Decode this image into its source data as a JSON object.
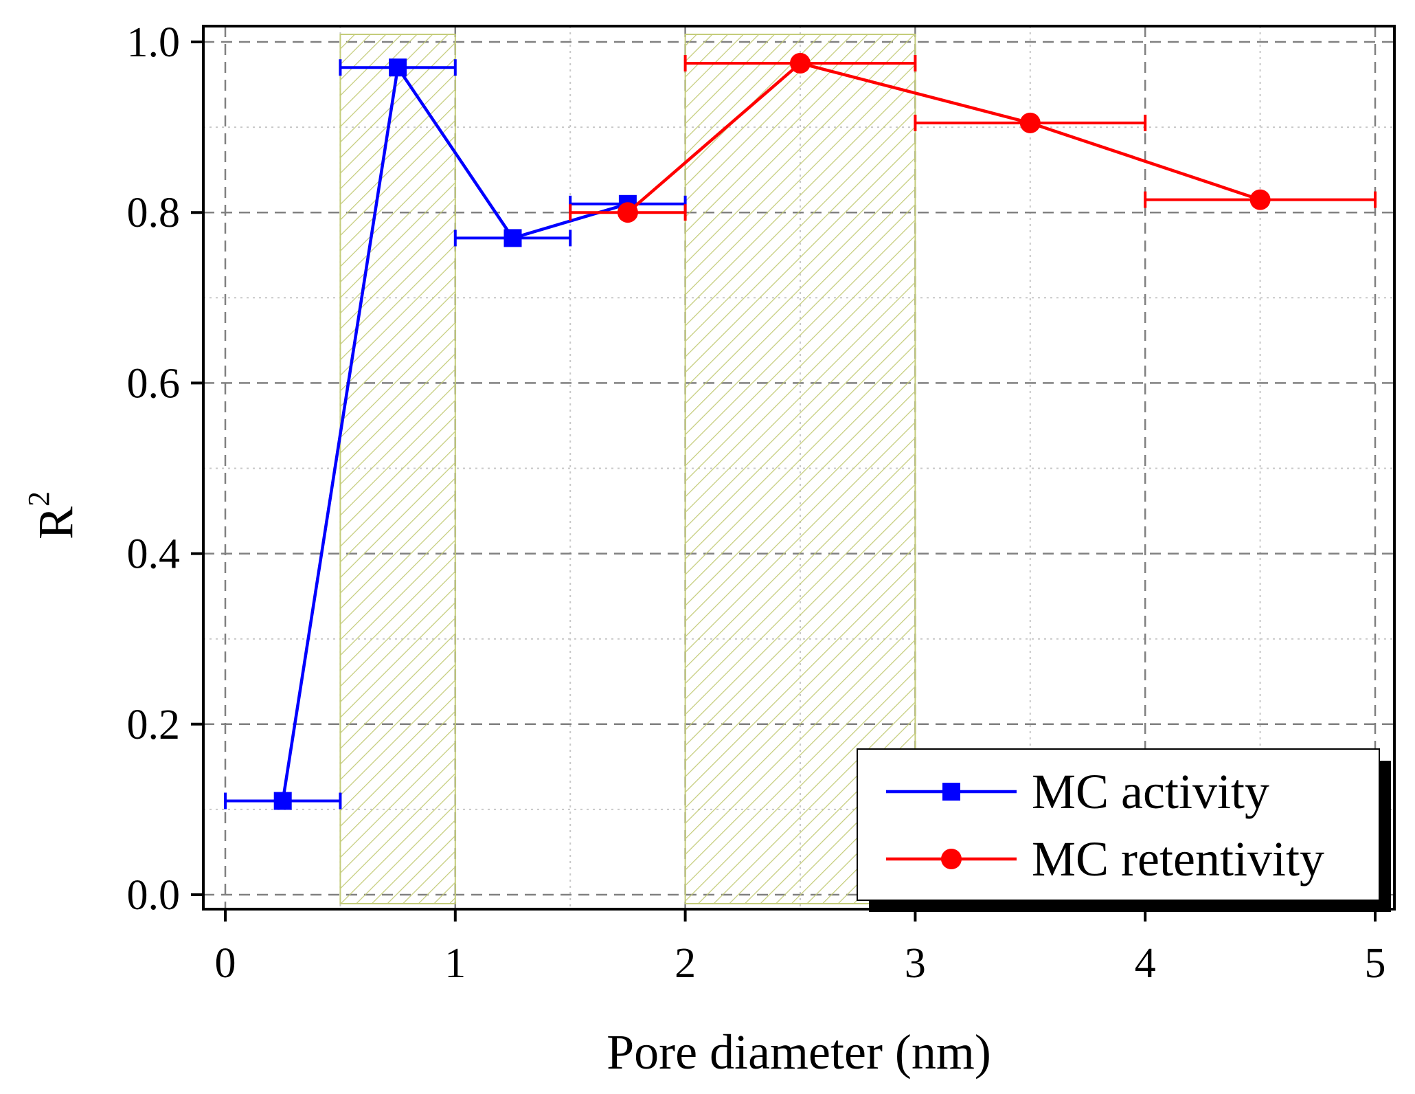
{
  "chart_data": {
    "type": "line",
    "xlabel": "Pore diameter (nm)",
    "ylabel": "R",
    "ylabel_superscript": "2",
    "xlim": [
      0,
      5
    ],
    "ylim": [
      0.0,
      1.0
    ],
    "x_ticks": [
      0,
      1,
      2,
      3,
      4,
      5
    ],
    "x_tick_labels": [
      "0",
      "1",
      "2",
      "3",
      "4",
      "5"
    ],
    "y_ticks": [
      0.0,
      0.2,
      0.4,
      0.6,
      0.8,
      1.0
    ],
    "y_tick_labels": [
      "0.0",
      "0.2",
      "0.4",
      "0.6",
      "0.8",
      "1.0"
    ],
    "grid": true,
    "legend_position": "bottom-right",
    "shaded_regions": [
      {
        "x0": 0.5,
        "x1": 1.0,
        "pattern": "hatched",
        "color": "#c4cc7a"
      },
      {
        "x0": 2.0,
        "x1": 3.0,
        "pattern": "hatched",
        "color": "#c4cc7a"
      }
    ],
    "series": [
      {
        "name": "MC activity",
        "color": "#0000ff",
        "marker": "square",
        "points": [
          {
            "x": 0.25,
            "y": 0.11,
            "xerr": 0.25
          },
          {
            "x": 0.75,
            "y": 0.97,
            "xerr": 0.25
          },
          {
            "x": 1.25,
            "y": 0.77,
            "xerr": 0.25
          },
          {
            "x": 1.75,
            "y": 0.81,
            "xerr": 0.25
          }
        ]
      },
      {
        "name": "MC retentivity",
        "color": "#ff0000",
        "marker": "circle",
        "points": [
          {
            "x": 1.75,
            "y": 0.8,
            "xerr": 0.25
          },
          {
            "x": 2.5,
            "y": 0.975,
            "xerr": 0.5
          },
          {
            "x": 3.5,
            "y": 0.905,
            "xerr": 0.5
          },
          {
            "x": 4.5,
            "y": 0.815,
            "xerr": 0.5
          }
        ]
      }
    ]
  }
}
